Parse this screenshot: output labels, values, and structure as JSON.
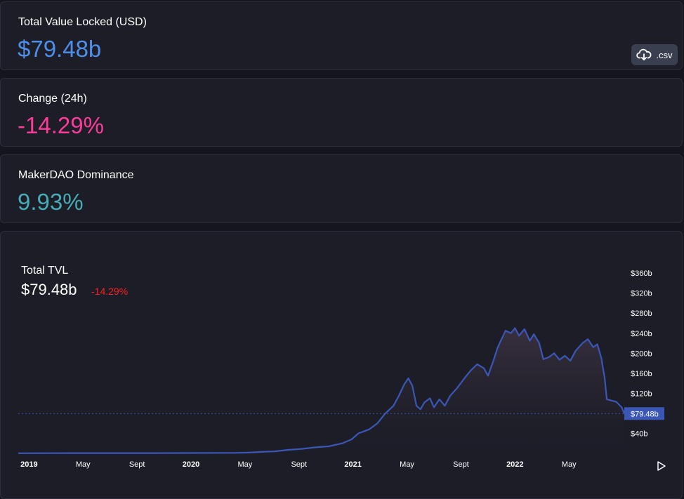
{
  "metrics": [
    {
      "label": "Total Value Locked (USD)",
      "value": "$79.48b",
      "color": "#4f8fea"
    },
    {
      "label": "Change (24h)",
      "value": "-14.29%",
      "color": "#fd3c99"
    },
    {
      "label": "MakerDAO Dominance",
      "value": "9.93%",
      "color": "#46acb7"
    }
  ],
  "csv_button": {
    "label": ".csv",
    "icon": "cloud-download-icon"
  },
  "chart_panel": {
    "title": "Total TVL",
    "value": "$79.48b",
    "change": "-14.29%",
    "change_color": "#ff1f1f",
    "price_tag": "$79.48b",
    "play_icon": "play-icon"
  },
  "chart_data": {
    "type": "area",
    "title": "Total TVL",
    "line_color": "#3b57b6",
    "fill_color_top": "#3b3140",
    "x_ticks": [
      "2019",
      "May",
      "Sept",
      "2020",
      "May",
      "Sept",
      "2021",
      "May",
      "Sept",
      "2022",
      "May"
    ],
    "y_ticks": [
      "$40b",
      "$80b",
      "$120b",
      "$160b",
      "$200b",
      "$240b",
      "$280b",
      "$320b",
      "$360b"
    ],
    "y_tick_values": [
      40,
      80,
      120,
      160,
      200,
      240,
      280,
      320,
      360
    ],
    "ylim": [
      0,
      370
    ],
    "x_unit": "months since Jan 2019",
    "current_value": 79.48,
    "points": [
      [
        0,
        0.3
      ],
      [
        2,
        0.4
      ],
      [
        4,
        0.5
      ],
      [
        6,
        0.6
      ],
      [
        8,
        0.5
      ],
      [
        10,
        0.6
      ],
      [
        12,
        0.7
      ],
      [
        14,
        0.9
      ],
      [
        16,
        1
      ],
      [
        17,
        1.5
      ],
      [
        18,
        3
      ],
      [
        19,
        4
      ],
      [
        20,
        7
      ],
      [
        21,
        9
      ],
      [
        22,
        12
      ],
      [
        23,
        14
      ],
      [
        24,
        20
      ],
      [
        24.7,
        28
      ],
      [
        25.2,
        40
      ],
      [
        26,
        48
      ],
      [
        26.6,
        60
      ],
      [
        27.2,
        80
      ],
      [
        27.8,
        95
      ],
      [
        28.2,
        115
      ],
      [
        28.6,
        138
      ],
      [
        28.9,
        150
      ],
      [
        29.2,
        135
      ],
      [
        29.5,
        95
      ],
      [
        29.8,
        88
      ],
      [
        30.1,
        102
      ],
      [
        30.5,
        110
      ],
      [
        30.8,
        92
      ],
      [
        31.2,
        108
      ],
      [
        31.6,
        95
      ],
      [
        32,
        115
      ],
      [
        32.5,
        130
      ],
      [
        33,
        148
      ],
      [
        33.5,
        165
      ],
      [
        34,
        178
      ],
      [
        34.5,
        170
      ],
      [
        34.8,
        155
      ],
      [
        35.2,
        185
      ],
      [
        35.5,
        210
      ],
      [
        35.8,
        228
      ],
      [
        36.1,
        245
      ],
      [
        36.5,
        240
      ],
      [
        36.8,
        250
      ],
      [
        37.1,
        235
      ],
      [
        37.5,
        248
      ],
      [
        37.9,
        225
      ],
      [
        38.2,
        238
      ],
      [
        38.6,
        220
      ],
      [
        38.9,
        188
      ],
      [
        39.3,
        192
      ],
      [
        39.7,
        200
      ],
      [
        40.1,
        187
      ],
      [
        40.5,
        195
      ],
      [
        40.9,
        185
      ],
      [
        41.3,
        205
      ],
      [
        41.8,
        220
      ],
      [
        42.2,
        228
      ],
      [
        42.6,
        212
      ],
      [
        42.9,
        218
      ],
      [
        43.2,
        190
      ],
      [
        43.45,
        150
      ],
      [
        43.6,
        108
      ],
      [
        44.0,
        105
      ],
      [
        44.3,
        103
      ],
      [
        44.7,
        92
      ],
      [
        44.9,
        79.48
      ]
    ]
  }
}
